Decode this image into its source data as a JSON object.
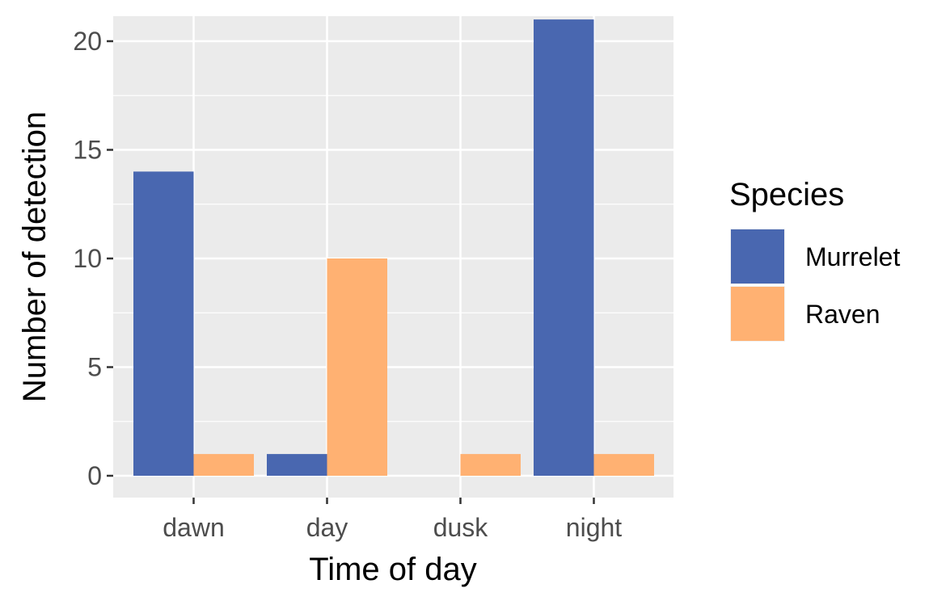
{
  "chart_data": {
    "type": "bar",
    "xlabel": "Time of day",
    "ylabel": "Number of detection",
    "categories": [
      "dawn",
      "day",
      "dusk",
      "night"
    ],
    "series": [
      {
        "name": "Murrelet",
        "color": "#4967b0",
        "values": [
          14,
          1,
          0,
          21
        ]
      },
      {
        "name": "Raven",
        "color": "#ffb172",
        "values": [
          1,
          10,
          1,
          1
        ]
      }
    ],
    "ylim": [
      0,
      21
    ],
    "yticks": [
      0,
      5,
      10,
      15,
      20
    ],
    "grid": true,
    "panel_background": "#ebebeb",
    "legend": {
      "title": "Species",
      "position": "right"
    }
  }
}
